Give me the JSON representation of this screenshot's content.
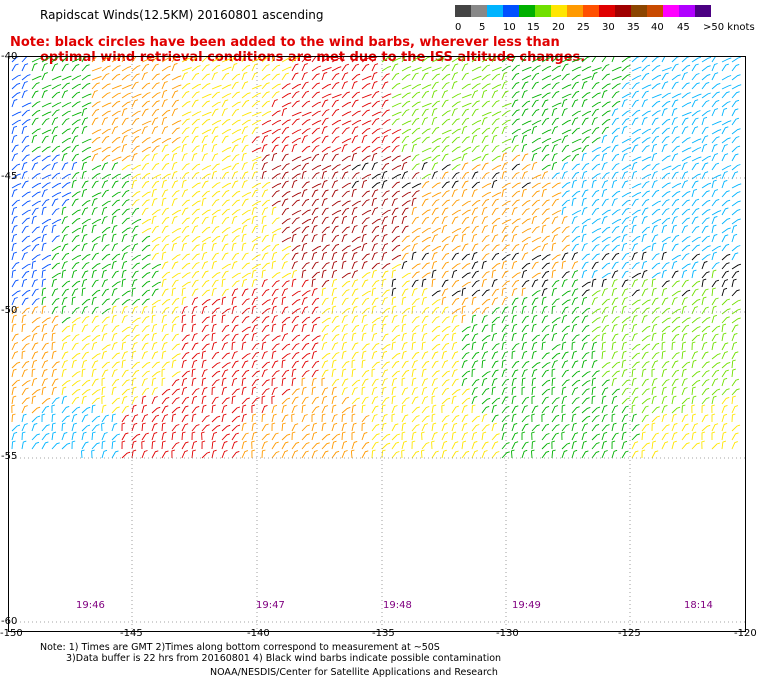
{
  "title": "Rapidscat Winds(12.5KM) 20160801 ascending",
  "note_line1": "Note: black circles have been added to the wind barbs, wherever less than",
  "note_line2": "optimal wind retrieval conditions are met due to the ISS altitude changes.",
  "legend": {
    "labels": [
      "0",
      "5",
      "10",
      "15",
      "20",
      "25",
      "30",
      "35",
      "40",
      "45",
      ">50 knots"
    ],
    "colors": [
      "#444444",
      "#888888",
      "#00b4ff",
      "#0050ff",
      "#00b000",
      "#70e000",
      "#ffe600",
      "#ff9a00",
      "#ff5000",
      "#e00000",
      "#a00000",
      "#8b4500",
      "#c84a00",
      "#ff00ff",
      "#b000ff",
      "#4b0082"
    ]
  },
  "lat_labels": [
    "-40",
    "-45",
    "-50",
    "-55",
    "-60"
  ],
  "lon_labels": [
    "-150",
    "-145",
    "-140",
    "-135",
    "-130",
    "-125",
    "-120"
  ],
  "times": [
    "19:46",
    "19:47",
    "19:48",
    "19:49",
    "18:14"
  ],
  "footer": {
    "line1": "Note: 1) Times are GMT 2)Times along bottom correspond to measurement at ~50S",
    "line2": "3)Data buffer is 22 hrs from 20160801 4) Black wind barbs indicate possible contamination",
    "line3": "NOAA/NESDIS/Center for Satellite Applications and Research"
  }
}
